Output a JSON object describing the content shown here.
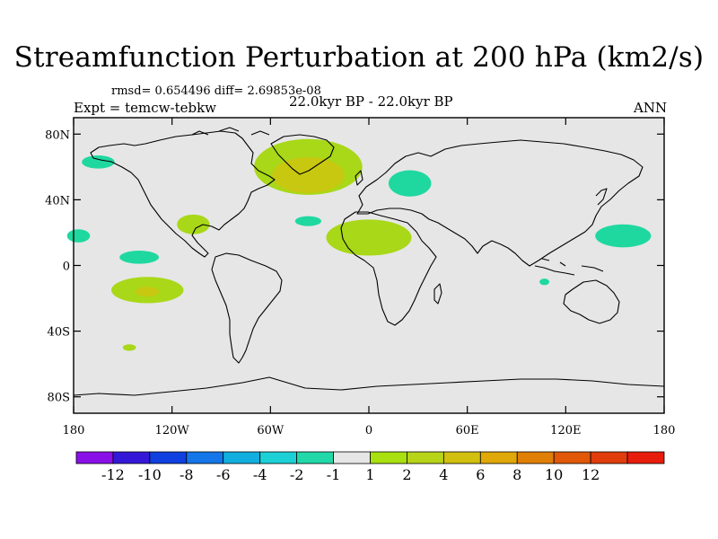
{
  "header": {
    "title": "Streamfunction Perturbation at 200 hPa (km2/s)",
    "stats": "rmsd= 0.654496 diff= 2.69853e-08",
    "experiment": "Expt = temcw-tebkw",
    "period": "22.0kyr BP - 22.0kyr BP",
    "season": "ANN"
  },
  "map": {
    "background_color": "#e6e6e6",
    "coastline_color": "#000000",
    "lat_ticks": [
      {
        "label": "80N",
        "value": 80
      },
      {
        "label": "40N",
        "value": 40
      },
      {
        "label": "0",
        "value": 0
      },
      {
        "label": "40S",
        "value": -40
      },
      {
        "label": "80S",
        "value": -80
      }
    ],
    "lon_ticks": [
      {
        "label": "180",
        "value": -180
      },
      {
        "label": "120W",
        "value": -120
      },
      {
        "label": "60W",
        "value": -60
      },
      {
        "label": "0",
        "value": 0
      },
      {
        "label": "60E",
        "value": 60
      },
      {
        "label": "120E",
        "value": 120
      },
      {
        "label": "180",
        "value": 180
      }
    ],
    "anomalies": [
      {
        "name": "north-atlantic-positive",
        "lon": -37,
        "lat": 60,
        "rx": 33,
        "ry": 17,
        "level": 2,
        "color": "#a8d818"
      },
      {
        "name": "north-atlantic-core",
        "lon": -37,
        "lat": 55,
        "rx": 22,
        "ry": 11,
        "level": 4,
        "color": "#c8c810"
      },
      {
        "name": "west-africa-positive",
        "lon": 0,
        "lat": 17,
        "rx": 26,
        "ry": 11,
        "level": 2,
        "color": "#a8d818"
      },
      {
        "name": "mexico-positive",
        "lon": -107,
        "lat": 25,
        "rx": 10,
        "ry": 6,
        "level": 2,
        "color": "#a8d818"
      },
      {
        "name": "south-pacific-positive",
        "lon": -135,
        "lat": -15,
        "rx": 22,
        "ry": 8,
        "level": 2,
        "color": "#a8d818"
      },
      {
        "name": "south-pacific-core",
        "lon": -135,
        "lat": -16,
        "rx": 7,
        "ry": 3,
        "level": 4,
        "color": "#c8c810"
      },
      {
        "name": "europe-negative",
        "lon": 25,
        "lat": 50,
        "rx": 13,
        "ry": 8,
        "level": -2,
        "color": "#1fd8a0"
      },
      {
        "name": "alaska-negative",
        "lon": -165,
        "lat": 63,
        "rx": 10,
        "ry": 4,
        "level": -2,
        "color": "#1fd8a0"
      },
      {
        "name": "atlantic-small-negative",
        "lon": -37,
        "lat": 27,
        "rx": 8,
        "ry": 3,
        "level": -2,
        "color": "#1fd8a0"
      },
      {
        "name": "central-pacific-negative",
        "lon": -140,
        "lat": 5,
        "rx": 12,
        "ry": 4,
        "level": -2,
        "color": "#1fd8a0"
      },
      {
        "name": "west-pacific-negative",
        "lon": 155,
        "lat": 18,
        "rx": 17,
        "ry": 7,
        "level": -2,
        "color": "#1fd8a0"
      },
      {
        "name": "dateline-negative",
        "lon": -177,
        "lat": 18,
        "rx": 7,
        "ry": 4,
        "level": -2,
        "color": "#1fd8a0"
      },
      {
        "name": "indian-ocean-negative",
        "lon": 107,
        "lat": -10,
        "rx": 3,
        "ry": 2,
        "level": -2,
        "color": "#1fd8a0"
      },
      {
        "name": "southern-pacific-small",
        "lon": -146,
        "lat": -50,
        "rx": 4,
        "ry": 2,
        "level": 2,
        "color": "#a8d818"
      }
    ]
  },
  "colorbar": {
    "colors": [
      "#8a10e8",
      "#3418d8",
      "#1040e0",
      "#1476e8",
      "#12aee0",
      "#1cd0d6",
      "#22d8a8",
      "#e6e6e6",
      "#a8e010",
      "#b8d418",
      "#d2c010",
      "#e0a808",
      "#e07f06",
      "#e05808",
      "#e03c0c",
      "#e81c0c"
    ],
    "labels": [
      "-12",
      "-10",
      "-8",
      "-6",
      "-4",
      "-2",
      "-1",
      "1",
      "2",
      "4",
      "6",
      "8",
      "10",
      "12"
    ]
  }
}
